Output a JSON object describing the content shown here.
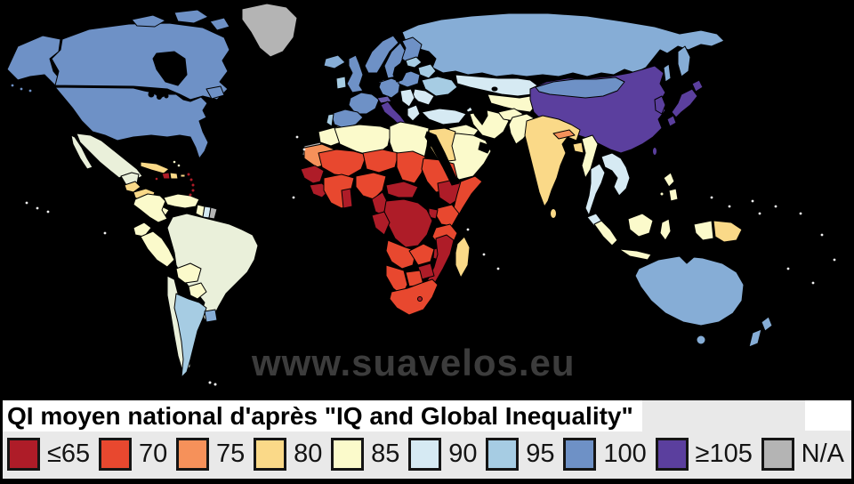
{
  "title": "QI moyen national d'après \"IQ and Global Inequality\"",
  "watermark": "www.suavelos.eu",
  "legend": [
    {
      "label": "≤65",
      "color": "#AE1C28"
    },
    {
      "label": "70",
      "color": "#E8482F"
    },
    {
      "label": "75",
      "color": "#F6915A"
    },
    {
      "label": "80",
      "color": "#FAD988"
    },
    {
      "label": "85",
      "color": "#FBFACB"
    },
    {
      "label": "90",
      "color": "#D6EAF3"
    },
    {
      "label": "95",
      "color": "#A6CCE3"
    },
    {
      "label": "100",
      "color": "#6E91C6"
    },
    {
      "label": "≥105",
      "color": "#5B3F9E"
    },
    {
      "label": "N/A",
      "color": "#B4B4B4"
    }
  ],
  "colors": {
    "ocean": "#000000",
    "panel_bg": "#E9E9E9",
    "title_bg": "#FFFFFF",
    "text": "#141414",
    "watermark": "#3C3C3C"
  },
  "map": {
    "palette": {
      "65": "#AE1C28",
      "70": "#E8482F",
      "75": "#F6915A",
      "80": "#FAD988",
      "85": "#FBFACB",
      "88": "#EAF0DA",
      "90": "#D6EAF3",
      "95": "#A6CCE3",
      "97": "#86ADD6",
      "100": "#6E91C6",
      "102": "#6A5BAB",
      "105": "#5B3F9E",
      "na": "#B4B4B4",
      "island": "#F2F2F2"
    },
    "regions": {
      "alaska": "100",
      "aleutians": "100",
      "canada": "100",
      "newfoundland": "100",
      "arctic-1": "100",
      "arctic-2": "100",
      "arctic-3": "100",
      "greenland": "na",
      "usa": "100",
      "mexico": "88",
      "baja": "88",
      "yucatan": "88",
      "guatemala": "80",
      "honduras-nicaragua": "80",
      "costa-rica-panama": "85",
      "cuba": "80",
      "jamaica": "65",
      "haiti": "65",
      "dominican-republic": "80",
      "puerto-rico": "80",
      "antilles": "65",
      "bahamas": "85",
      "colombia": "85",
      "venezuela": "85",
      "guyana": "85",
      "suriname": "90",
      "french-guiana": "na",
      "ecuador": "85",
      "peru": "85",
      "brazil": "88",
      "bolivia": "85",
      "paraguay": "85",
      "chile": "88",
      "argentina": "95",
      "uruguay": "97",
      "iceland": "97",
      "uk": "100",
      "ireland": "95",
      "norway": "100",
      "sweden": "100",
      "finland": "100",
      "denmark": "100",
      "france": "100",
      "spain": "100",
      "portugal": "95",
      "germany-central-europe": "100",
      "alps": "102",
      "italy": "105",
      "sicily": "105",
      "poland-czech": "100",
      "baltics": "95",
      "belarus": "95",
      "ukraine": "95",
      "romania-bulgaria": "90",
      "balkans": "90",
      "greece": "90",
      "turkey": "90",
      "caucasus": "90",
      "russia": "97",
      "kamchatka": "97",
      "sakhalin": "97",
      "kazakhstan": "90",
      "central-asia": "85",
      "china": "105",
      "mongolia": "100",
      "korea": "105",
      "japan-hokkaido": "105",
      "japan-honshu": "105",
      "japan-kyushu": "105",
      "taiwan": "105",
      "india": "80",
      "pakistan": "85",
      "afghanistan": "85",
      "iran": "85",
      "iraq-syria": "85",
      "arabia": "85",
      "israel": "95",
      "nepal": "75",
      "bangladesh": "80",
      "sri-lanka": "80",
      "myanmar": "85",
      "thailand": "90",
      "indochina": "90",
      "malaysia": "90",
      "sumatra": "85",
      "java": "85",
      "borneo": "85",
      "sulawesi": "85",
      "west-new-guinea": "85",
      "papua-new-guinea": "80",
      "philippines-north": "85",
      "philippines-south": "85",
      "philippines-dot": "85",
      "australia": "97",
      "tasmania": "97",
      "nz-north": "97",
      "nz-south": "97",
      "morocco": "85",
      "western-sahara": "na",
      "algeria": "85",
      "libya": "85",
      "egypt": "80",
      "mauritania": "75",
      "mali": "70",
      "niger": "70",
      "chad": "70",
      "sudan": "70",
      "senegal-guinea": "65",
      "sierra-liberia": "65",
      "ivory-ghana": "70",
      "ghana-dark": "65",
      "nigeria": "70",
      "cameroon": "65",
      "central-african-republic": "65",
      "ethiopia": "65",
      "somalia": "70",
      "kenya": "70",
      "uganda": "65",
      "gabon-congo": "65",
      "drc": "65",
      "tanzania": "70",
      "angola": "70",
      "zambia": "70",
      "malawi": "65",
      "mozambique": "65",
      "zimbabwe": "65",
      "botswana": "70",
      "namibia": "70",
      "south-africa": "70",
      "lesotho": "65",
      "madagascar": "80",
      "ocean-islands": "island",
      "falklands": "island"
    }
  }
}
